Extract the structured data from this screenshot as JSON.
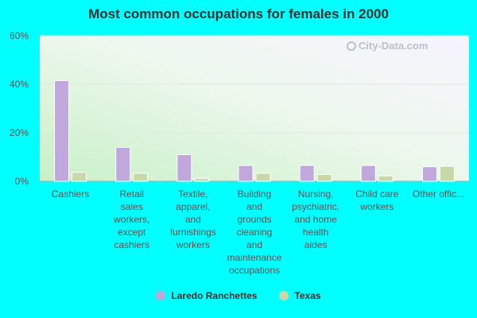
{
  "chart_data": {
    "type": "bar",
    "title": "Most common occupations for females in 2000",
    "categories": [
      "Cashiers",
      "Retail sales workers, except cashiers",
      "Textile, apparel, and furnishings workers",
      "Building and grounds cleaning and maintenance occupations",
      "Nursing, psychiatric, and home health aides",
      "Child care workers",
      "Other offic..."
    ],
    "series": [
      {
        "name": "Laredo Ranchettes",
        "color": "#c0a8dc",
        "values": [
          41.5,
          14.0,
          11.0,
          6.5,
          6.5,
          6.5,
          6.0
        ]
      },
      {
        "name": "Texas",
        "color": "#c8d8a8",
        "values": [
          3.7,
          3.3,
          1.2,
          3.3,
          2.8,
          2.2,
          6.2
        ]
      }
    ],
    "yticks": [
      "0%",
      "20%",
      "40%",
      "60%"
    ],
    "ylim": [
      0,
      60
    ],
    "legend_position": "bottom-center",
    "grid": true
  },
  "watermark": "City-Data.com"
}
